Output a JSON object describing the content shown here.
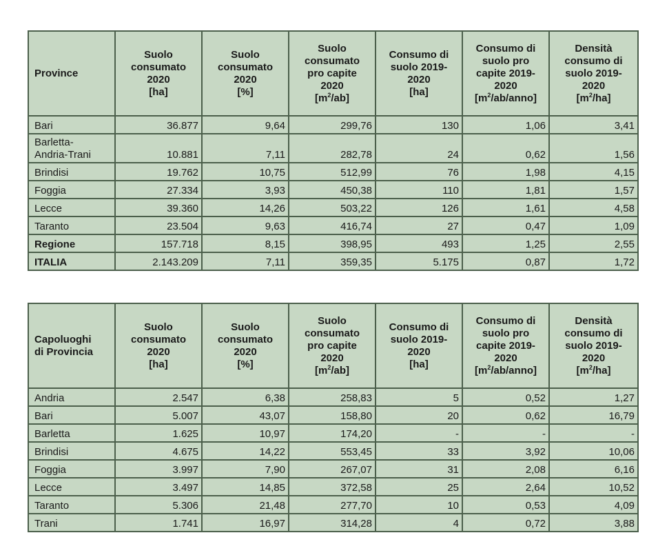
{
  "table1": {
    "columns": [
      "Province",
      "Suolo consumato 2020 [ha]",
      "Suolo consumato 2020 [%]",
      "Suolo consumato pro capite 2020 [m²/ab]",
      "Consumo di suolo 2019-2020 [ha]",
      "Consumo di suolo pro capite 2019-2020 [m²/ab/anno]",
      "Densità consumo di suolo 2019-2020 [m²/ha]"
    ],
    "rows": [
      [
        "Bari",
        "36.877",
        "9,64",
        "299,76",
        "130",
        "1,06",
        "3,41"
      ],
      [
        "Barletta-Andria-Trani",
        "10.881",
        "7,11",
        "282,78",
        "24",
        "0,62",
        "1,56"
      ],
      [
        "Brindisi",
        "19.762",
        "10,75",
        "512,99",
        "76",
        "1,98",
        "4,15"
      ],
      [
        "Foggia",
        "27.334",
        "3,93",
        "450,38",
        "110",
        "1,81",
        "1,57"
      ],
      [
        "Lecce",
        "39.360",
        "14,26",
        "503,22",
        "126",
        "1,61",
        "4,58"
      ],
      [
        "Taranto",
        "23.504",
        "9,63",
        "416,74",
        "27",
        "0,47",
        "1,09"
      ],
      [
        "Regione",
        "157.718",
        "8,15",
        "398,95",
        "493",
        "1,25",
        "2,55"
      ],
      [
        "ITALIA",
        "2.143.209",
        "7,11",
        "359,35",
        "5.175",
        "0,87",
        "1,72"
      ]
    ]
  },
  "table2": {
    "columns": [
      "Capoluoghi di Provincia",
      "Suolo consumato 2020 [ha]",
      "Suolo consumato 2020 [%]",
      "Suolo consumato pro capite 2020 [m²/ab]",
      "Consumo di suolo 2019-2020 [ha]",
      "Consumo di suolo pro capite 2019-2020 [m²/ab/anno]",
      "Densità consumo di suolo 2019-2020 [m²/ha]"
    ],
    "rows": [
      [
        "Andria",
        "2.547",
        "6,38",
        "258,83",
        "5",
        "0,52",
        "1,27"
      ],
      [
        "Bari",
        "5.007",
        "43,07",
        "158,80",
        "20",
        "0,62",
        "16,79"
      ],
      [
        "Barletta",
        "1.625",
        "10,97",
        "174,20",
        "-",
        "-",
        "-"
      ],
      [
        "Brindisi",
        "4.675",
        "14,22",
        "553,45",
        "33",
        "3,92",
        "10,06"
      ],
      [
        "Foggia",
        "3.997",
        "7,90",
        "267,07",
        "31",
        "2,08",
        "6,16"
      ],
      [
        "Lecce",
        "3.497",
        "14,85",
        "372,58",
        "25",
        "2,64",
        "10,52"
      ],
      [
        "Taranto",
        "5.306",
        "21,48",
        "277,70",
        "10",
        "0,53",
        "4,09"
      ],
      [
        "Trani",
        "1.741",
        "16,97",
        "314,28",
        "4",
        "0,72",
        "3,88"
      ]
    ]
  }
}
